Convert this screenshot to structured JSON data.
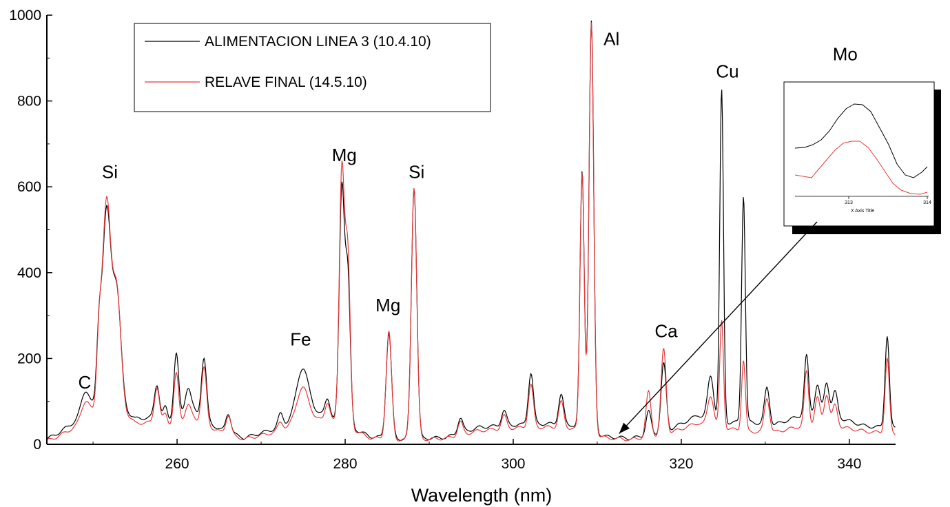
{
  "chart_data": {
    "type": "line",
    "xlabel": "Wavelength (nm)",
    "ylabel": "",
    "xlim": [
      244.5,
      345.5
    ],
    "ylim": [
      0,
      1000
    ],
    "grid": false,
    "legend_placement": "top-left",
    "x_ticks": [
      260,
      280,
      300,
      320,
      340
    ],
    "y_ticks": [
      0,
      200,
      400,
      600,
      800,
      1000
    ],
    "series": [
      {
        "name": "ALIMENTACION LINEA 3 (10.4.10)",
        "color": "#000000",
        "baseline": [
          [
            244.5,
            12
          ],
          [
            246,
            28
          ],
          [
            248,
            55
          ],
          [
            250,
            82
          ],
          [
            253,
            90
          ],
          [
            255,
            60
          ],
          [
            257,
            62
          ],
          [
            259,
            55
          ],
          [
            262,
            78
          ],
          [
            265,
            35
          ],
          [
            268,
            15
          ],
          [
            272,
            38
          ],
          [
            276,
            78
          ],
          [
            279,
            55
          ],
          [
            283,
            18
          ],
          [
            287,
            12
          ],
          [
            292,
            16
          ],
          [
            296,
            40
          ],
          [
            300,
            45
          ],
          [
            304,
            48
          ],
          [
            307,
            45
          ],
          [
            311,
            18
          ],
          [
            314,
            14
          ],
          [
            318,
            28
          ],
          [
            322,
            68
          ],
          [
            325,
            50
          ],
          [
            328,
            52
          ],
          [
            331,
            45
          ],
          [
            335,
            72
          ],
          [
            339,
            60
          ],
          [
            342,
            42
          ],
          [
            345.5,
            38
          ]
        ],
        "peaks": [
          [
            249.1,
            55,
            0.5
          ],
          [
            250.7,
            150,
            0.28
          ],
          [
            251.6,
            450,
            0.5
          ],
          [
            252.8,
            265,
            0.5
          ],
          [
            257.6,
            80,
            0.3
          ],
          [
            258.6,
            30,
            0.25
          ],
          [
            259.9,
            150,
            0.28
          ],
          [
            261.3,
            60,
            0.35
          ],
          [
            263.2,
            140,
            0.3
          ],
          [
            266.1,
            45,
            0.3
          ],
          [
            272.3,
            30,
            0.3
          ],
          [
            274.9,
            110,
            0.7
          ],
          [
            277.9,
            45,
            0.3
          ],
          [
            279.6,
            540,
            0.3
          ],
          [
            280.3,
            350,
            0.3
          ],
          [
            285.2,
            245,
            0.32
          ],
          [
            288.2,
            585,
            0.32
          ],
          [
            293.7,
            35,
            0.3
          ],
          [
            298.9,
            35,
            0.3
          ],
          [
            302.1,
            120,
            0.3
          ],
          [
            305.7,
            70,
            0.3
          ],
          [
            308.2,
            600,
            0.25
          ],
          [
            309.3,
            955,
            0.28
          ],
          [
            316.1,
            55,
            0.3
          ],
          [
            317.9,
            160,
            0.3
          ],
          [
            323.5,
            100,
            0.35
          ],
          [
            324.8,
            775,
            0.22
          ],
          [
            327.4,
            530,
            0.22
          ],
          [
            330.2,
            85,
            0.3
          ],
          [
            334.9,
            135,
            0.25
          ],
          [
            336.2,
            70,
            0.3
          ],
          [
            337.3,
            80,
            0.3
          ],
          [
            338.3,
            60,
            0.3
          ],
          [
            344.5,
            215,
            0.25
          ]
        ]
      },
      {
        "name": "RELAVE FINAL (14.5.10)",
        "color": "#e8393c",
        "baseline": [
          [
            244.5,
            8
          ],
          [
            246,
            20
          ],
          [
            248,
            42
          ],
          [
            250,
            68
          ],
          [
            253,
            85
          ],
          [
            255,
            50
          ],
          [
            257,
            50
          ],
          [
            259,
            45
          ],
          [
            262,
            60
          ],
          [
            265,
            30
          ],
          [
            268,
            12
          ],
          [
            272,
            30
          ],
          [
            276,
            60
          ],
          [
            279,
            50
          ],
          [
            283,
            15
          ],
          [
            287,
            10
          ],
          [
            292,
            14
          ],
          [
            296,
            32
          ],
          [
            300,
            38
          ],
          [
            304,
            40
          ],
          [
            307,
            38
          ],
          [
            311,
            15
          ],
          [
            314,
            11
          ],
          [
            318,
            22
          ],
          [
            322,
            50
          ],
          [
            325,
            38
          ],
          [
            328,
            30
          ],
          [
            331,
            28
          ],
          [
            335,
            45
          ],
          [
            339,
            40
          ],
          [
            342,
            30
          ],
          [
            345.5,
            24
          ]
        ],
        "peaks": [
          [
            249.1,
            45,
            0.5
          ],
          [
            250.7,
            150,
            0.28
          ],
          [
            251.6,
            480,
            0.5
          ],
          [
            252.8,
            270,
            0.5
          ],
          [
            257.6,
            85,
            0.3
          ],
          [
            258.6,
            25,
            0.25
          ],
          [
            259.9,
            115,
            0.28
          ],
          [
            261.3,
            35,
            0.35
          ],
          [
            263.2,
            130,
            0.3
          ],
          [
            266.1,
            45,
            0.3
          ],
          [
            272.3,
            20,
            0.3
          ],
          [
            274.9,
            80,
            0.7
          ],
          [
            277.9,
            45,
            0.3
          ],
          [
            279.6,
            590,
            0.3
          ],
          [
            280.3,
            400,
            0.3
          ],
          [
            285.2,
            250,
            0.32
          ],
          [
            288.2,
            590,
            0.32
          ],
          [
            293.7,
            30,
            0.3
          ],
          [
            298.9,
            30,
            0.3
          ],
          [
            302.1,
            100,
            0.3
          ],
          [
            305.7,
            60,
            0.3
          ],
          [
            308.2,
            605,
            0.25
          ],
          [
            309.3,
            955,
            0.28
          ],
          [
            316.1,
            105,
            0.3
          ],
          [
            317.9,
            200,
            0.3
          ],
          [
            323.5,
            70,
            0.35
          ],
          [
            324.8,
            250,
            0.22
          ],
          [
            327.4,
            165,
            0.22
          ],
          [
            330.2,
            80,
            0.3
          ],
          [
            334.9,
            125,
            0.25
          ],
          [
            336.2,
            65,
            0.3
          ],
          [
            337.3,
            75,
            0.3
          ],
          [
            338.3,
            50,
            0.3
          ],
          [
            344.5,
            175,
            0.25
          ]
        ]
      }
    ],
    "annotations": [
      {
        "text": "C",
        "x": 249,
        "y": 130
      },
      {
        "text": "Si",
        "x": 252,
        "y": 620
      },
      {
        "text": "Fe",
        "x": 274.7,
        "y": 230
      },
      {
        "text": "Mg",
        "x": 279.9,
        "y": 660
      },
      {
        "text": "Mg",
        "x": 285.1,
        "y": 310
      },
      {
        "text": "Si",
        "x": 288.5,
        "y": 620
      },
      {
        "text": "Al",
        "x": 311.7,
        "y": 930
      },
      {
        "text": "Ca",
        "x": 318.2,
        "y": 250
      },
      {
        "text": "Cu",
        "x": 325.5,
        "y": 855
      },
      {
        "text": "Mo",
        "x": 339.5,
        "y": 895
      }
    ],
    "inset": {
      "label": "Mo",
      "xlabel": "X Axis Title",
      "x_ticks": [
        "313",
        "314"
      ],
      "points_to_x": 312.6
    }
  }
}
